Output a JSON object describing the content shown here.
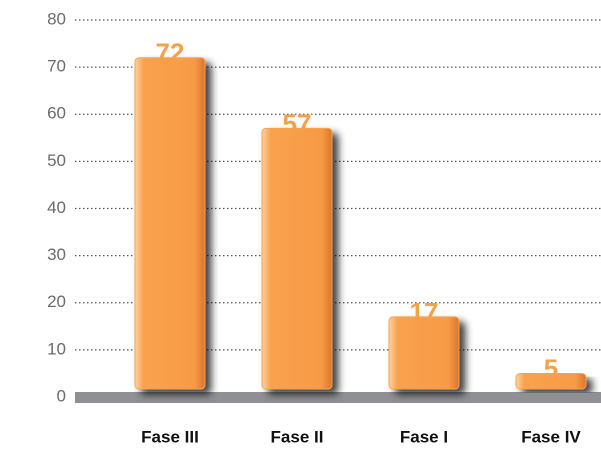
{
  "chart_data": {
    "type": "bar",
    "categories": [
      "Fase III",
      "Fase II",
      "Fase I",
      "Fase IV"
    ],
    "values": [
      72,
      57,
      17,
      5
    ],
    "color": "#f9a24f",
    "ylim": [
      0,
      80
    ],
    "yticks": [
      0,
      10,
      20,
      30,
      40,
      50,
      60,
      70,
      80
    ],
    "grid": true
  }
}
